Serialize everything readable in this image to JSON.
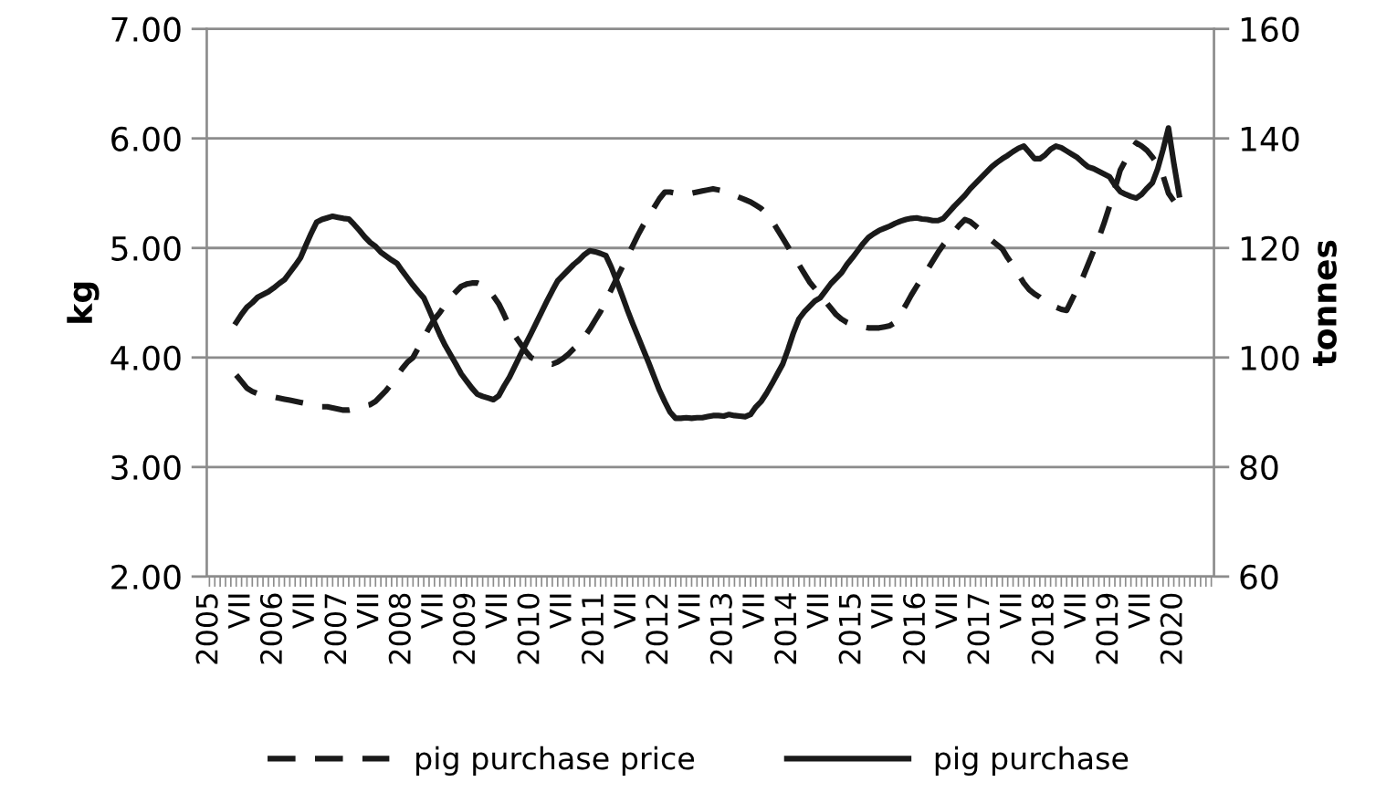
{
  "chart_data": {
    "type": "line",
    "ylabel": "kg",
    "y2label": "tonnes",
    "categories": [
      "2005",
      null,
      null,
      null,
      null,
      null,
      "VII",
      null,
      null,
      null,
      null,
      null,
      "2006",
      null,
      null,
      null,
      null,
      null,
      "VII",
      null,
      null,
      null,
      null,
      null,
      "2007",
      null,
      null,
      null,
      null,
      null,
      "VII",
      null,
      null,
      null,
      null,
      null,
      "2008",
      null,
      null,
      null,
      null,
      null,
      "VII",
      null,
      null,
      null,
      null,
      null,
      "2009",
      null,
      null,
      null,
      null,
      null,
      "VII",
      null,
      null,
      null,
      null,
      null,
      "2010",
      null,
      null,
      null,
      null,
      null,
      "VII",
      null,
      null,
      null,
      null,
      null,
      "2011",
      null,
      null,
      null,
      null,
      null,
      "VII",
      null,
      null,
      null,
      null,
      null,
      "2012",
      null,
      null,
      null,
      null,
      null,
      "VII",
      null,
      null,
      null,
      null,
      null,
      "2013",
      null,
      null,
      null,
      null,
      null,
      "VII",
      null,
      null,
      null,
      null,
      null,
      "2014",
      null,
      null,
      null,
      null,
      null,
      "VII",
      null,
      null,
      null,
      null,
      null,
      "2015",
      null,
      null,
      null,
      null,
      null,
      "VII",
      null,
      null,
      null,
      null,
      null,
      "2016",
      null,
      null,
      null,
      null,
      null,
      "VII",
      null,
      null,
      null,
      null,
      null,
      "2017",
      null,
      null,
      null,
      null,
      null,
      "VII",
      null,
      null,
      null,
      null,
      null,
      "2018",
      null,
      null,
      null,
      null,
      null,
      "VII",
      null,
      null,
      null,
      null,
      null,
      "2019",
      null,
      null,
      null,
      null,
      null,
      "VII",
      null,
      null,
      null,
      null,
      null,
      "2020",
      null,
      null,
      null,
      null,
      null,
      null,
      null
    ],
    "series": [
      {
        "name": "pig purchase price",
        "color": "#1a1a1a",
        "line_style": "dashed",
        "values": [
          null,
          null,
          null,
          null,
          null,
          3.84,
          3.78,
          3.72,
          3.69,
          3.67,
          3.66,
          3.65,
          3.64,
          3.63,
          3.62,
          3.61,
          3.6,
          3.59,
          3.58,
          3.57,
          3.56,
          3.55,
          3.55,
          3.54,
          3.53,
          3.52,
          3.52,
          3.53,
          3.54,
          3.56,
          3.57,
          3.6,
          3.65,
          3.7,
          3.76,
          3.83,
          3.9,
          3.96,
          4.0,
          4.09,
          4.18,
          4.27,
          4.35,
          4.41,
          4.48,
          4.55,
          4.6,
          4.65,
          4.67,
          4.68,
          4.68,
          4.66,
          4.62,
          4.56,
          4.49,
          4.39,
          4.28,
          4.2,
          4.13,
          4.06,
          4.0,
          3.98,
          3.96,
          3.95,
          3.94,
          3.96,
          3.99,
          4.03,
          4.08,
          4.12,
          4.19,
          4.26,
          4.34,
          4.42,
          4.52,
          4.62,
          4.72,
          4.82,
          4.92,
          5.02,
          5.12,
          5.21,
          5.29,
          5.37,
          5.45,
          5.51,
          5.51,
          5.5,
          5.5,
          5.49,
          5.5,
          5.51,
          5.52,
          5.53,
          5.54,
          5.53,
          5.52,
          5.5,
          5.48,
          5.46,
          5.44,
          5.42,
          5.39,
          5.36,
          5.31,
          5.25,
          5.17,
          5.09,
          5.01,
          4.93,
          4.85,
          4.77,
          4.69,
          4.63,
          4.57,
          4.51,
          4.45,
          4.39,
          4.35,
          4.32,
          4.3,
          4.29,
          4.28,
          4.27,
          4.27,
          4.27,
          4.28,
          4.29,
          4.32,
          4.4,
          4.48,
          4.57,
          4.65,
          4.73,
          4.8,
          4.88,
          4.96,
          5.03,
          5.09,
          5.15,
          5.21,
          5.26,
          5.24,
          5.2,
          5.16,
          5.12,
          5.07,
          5.03,
          4.99,
          4.91,
          4.84,
          4.76,
          4.68,
          4.62,
          4.58,
          4.55,
          4.51,
          4.49,
          4.46,
          4.44,
          4.43,
          4.53,
          4.63,
          4.73,
          4.85,
          4.97,
          5.09,
          5.23,
          5.38,
          5.54,
          5.71,
          5.8,
          5.89,
          5.96,
          5.93,
          5.89,
          5.83,
          5.76,
          5.66,
          5.5,
          5.43,
          null,
          null,
          null,
          null,
          null,
          null,
          null
        ]
      },
      {
        "name": "pig purchase",
        "color": "#1a1a1a",
        "line_style": "solid",
        "axis": "y2",
        "values": [
          null,
          null,
          null,
          null,
          null,
          106.4,
          107.9,
          109.2,
          110.0,
          111.0,
          111.5,
          112.0,
          112.7,
          113.5,
          114.2,
          115.5,
          116.8,
          118.2,
          120.5,
          122.7,
          124.7,
          125.2,
          125.5,
          125.8,
          125.6,
          125.4,
          125.3,
          124.3,
          123.2,
          122.0,
          121.0,
          120.3,
          119.2,
          118.5,
          117.8,
          117.2,
          115.8,
          114.5,
          113.2,
          112.0,
          110.9,
          108.7,
          106.4,
          104.2,
          102.2,
          100.5,
          98.8,
          97.0,
          95.7,
          94.4,
          93.3,
          92.9,
          92.6,
          92.3,
          93.0,
          94.8,
          96.4,
          98.4,
          100.4,
          102.4,
          104.3,
          106.3,
          108.3,
          110.3,
          112.2,
          114.0,
          115.0,
          116.0,
          117.0,
          117.8,
          118.8,
          119.5,
          119.3,
          119.0,
          118.6,
          116.5,
          114.0,
          111.4,
          108.7,
          106.2,
          103.8,
          101.4,
          99.0,
          96.5,
          94.0,
          91.9,
          90.0,
          88.9,
          88.9,
          89.0,
          88.9,
          89.0,
          89.0,
          89.2,
          89.4,
          89.4,
          89.3,
          89.6,
          89.4,
          89.3,
          89.2,
          89.6,
          91.0,
          92.0,
          93.5,
          95.2,
          97.0,
          98.8,
          101.5,
          104.5,
          107.0,
          108.3,
          109.3,
          110.3,
          110.9,
          112.2,
          113.5,
          114.5,
          115.5,
          117.0,
          118.2,
          119.5,
          120.8,
          121.9,
          122.6,
          123.2,
          123.6,
          124.0,
          124.5,
          124.9,
          125.2,
          125.4,
          125.5,
          125.3,
          125.2,
          125.0,
          125.0,
          125.4,
          126.5,
          127.6,
          128.6,
          129.6,
          130.8,
          131.8,
          132.8,
          133.8,
          134.8,
          135.6,
          136.3,
          136.9,
          137.6,
          138.2,
          138.6,
          137.5,
          136.3,
          136.3,
          137.0,
          138.0,
          138.6,
          138.3,
          137.7,
          137.1,
          136.5,
          135.6,
          134.8,
          134.5,
          134.0,
          133.5,
          133.0,
          131.5,
          130.3,
          129.8,
          129.4,
          129.1,
          129.8,
          130.9,
          131.9,
          134.5,
          138.0,
          141.9,
          135.5,
          129.7,
          null,
          null,
          null,
          null,
          null,
          null
        ]
      }
    ],
    "ylim": [
      2,
      7
    ],
    "yticks": [
      {
        "value": 2,
        "label": "2.00"
      },
      {
        "value": 3,
        "label": "3.00"
      },
      {
        "value": 4,
        "label": "4.00"
      },
      {
        "value": 5,
        "label": "5.00"
      },
      {
        "value": 6,
        "label": "6.00"
      },
      {
        "value": 7,
        "label": "7.00"
      }
    ],
    "y2lim": [
      60,
      160
    ],
    "y2ticks": [
      60,
      80,
      100,
      120,
      140,
      160
    ],
    "grid": "y",
    "legend": "bottom"
  }
}
